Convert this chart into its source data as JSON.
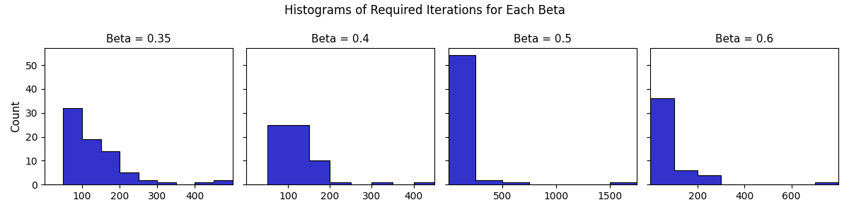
{
  "title": "Histograms of Required Iterations for Each Beta",
  "betas": [
    "Beta = 0.35",
    "Beta = 0.4",
    "Beta = 0.5",
    "Beta = 0.6"
  ],
  "ylabel": "Count",
  "bar_color": "#3333cc",
  "edge_color": "black",
  "datasets": {
    "0.35": {
      "bin_edges": [
        0,
        50,
        100,
        150,
        200,
        250,
        300,
        350,
        400,
        450,
        500
      ],
      "counts": [
        0,
        32,
        19,
        14,
        5,
        2,
        1,
        0,
        1,
        2
      ]
    },
    "0.4": {
      "bin_edges": [
        0,
        50,
        100,
        150,
        200,
        250,
        300,
        350,
        400,
        450
      ],
      "counts": [
        0,
        25,
        25,
        10,
        1,
        0,
        1,
        0,
        1
      ]
    },
    "0.5": {
      "bin_edges": [
        0,
        250,
        500,
        750,
        1000,
        1250,
        1500,
        1750
      ],
      "counts": [
        54,
        2,
        1,
        0,
        0,
        0,
        1
      ]
    },
    "0.6": {
      "bin_edges": [
        0,
        100,
        200,
        300,
        400,
        500,
        600,
        700,
        800
      ],
      "counts": [
        36,
        6,
        4,
        0,
        0,
        0,
        0,
        1
      ]
    }
  },
  "xlims": {
    "0.35": [
      0,
      500
    ],
    "0.4": [
      0,
      450
    ],
    "0.5": [
      0,
      1750
    ],
    "0.6": [
      0,
      800
    ]
  },
  "xticks": {
    "0.35": [
      100,
      200,
      300,
      400
    ],
    "0.4": [
      100,
      200,
      300,
      400
    ],
    "0.5": [
      500,
      1000,
      1500
    ],
    "0.6": [
      200,
      400,
      600
    ]
  },
  "yticks": [
    0,
    10,
    20,
    30,
    40,
    50
  ],
  "ylim": [
    0,
    57
  ],
  "figsize": [
    12.0,
    3.0
  ],
  "dpi": 100
}
